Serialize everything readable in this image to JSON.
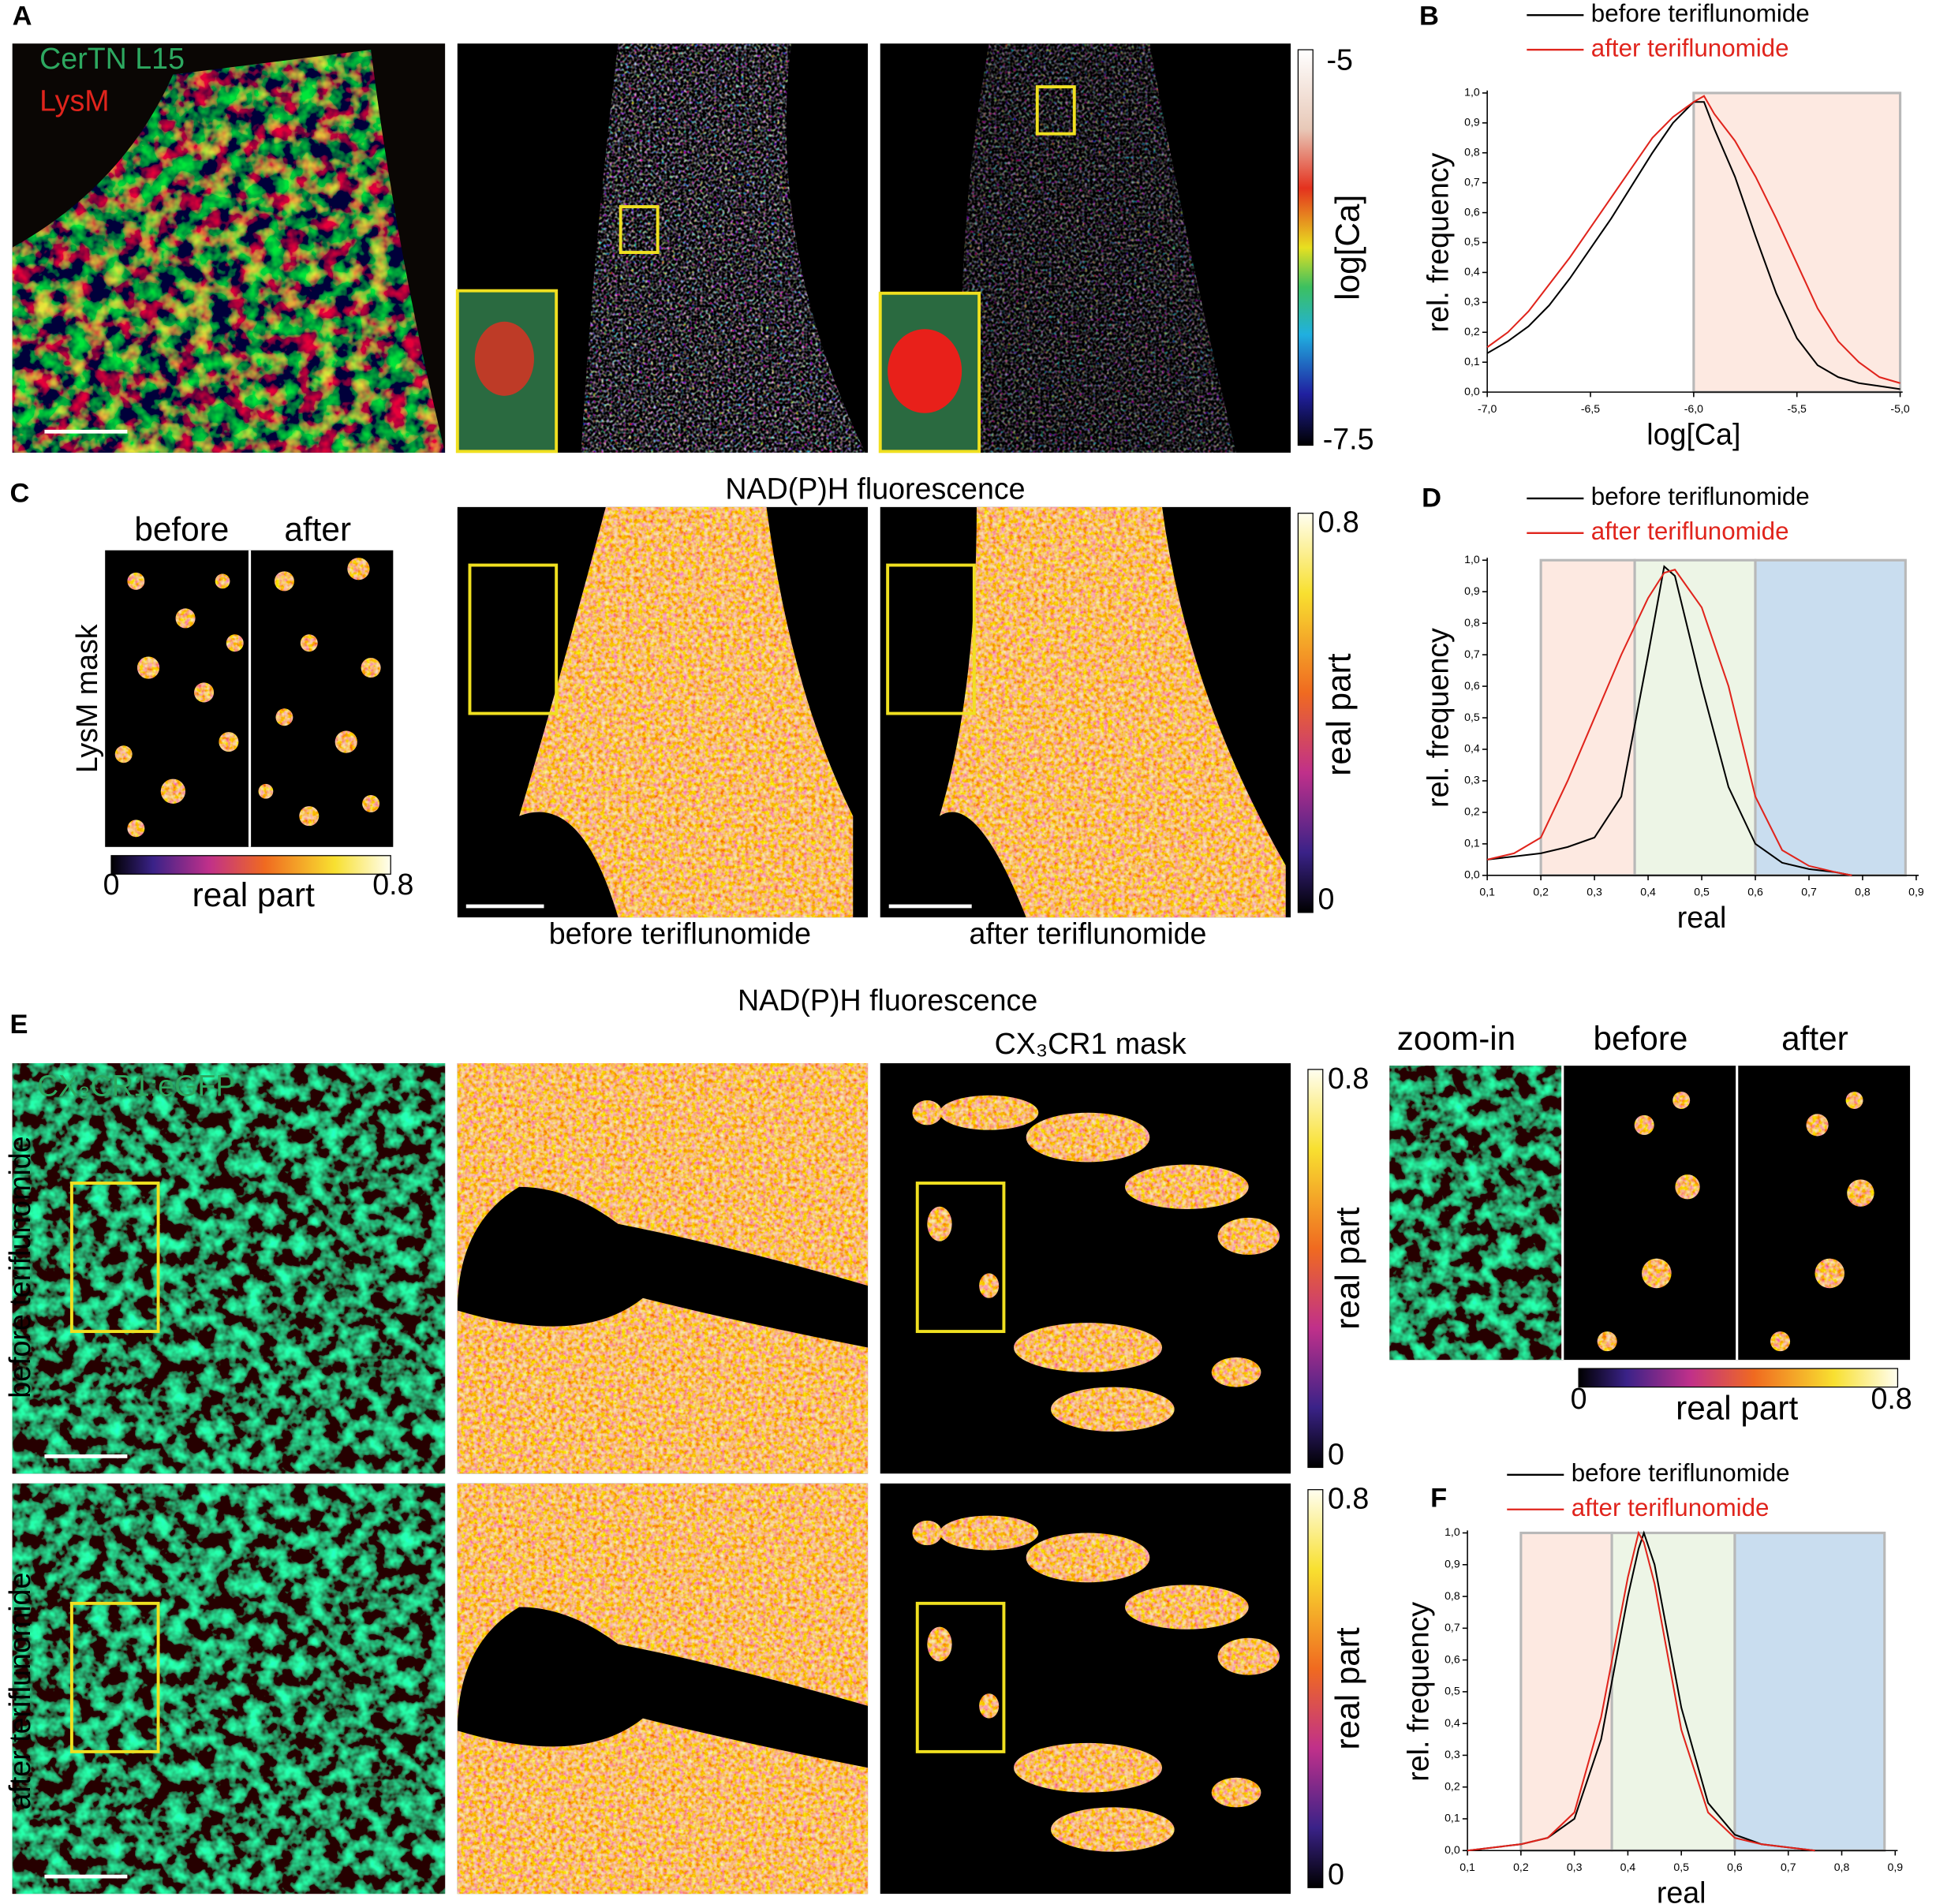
{
  "panel_labels": [
    "A",
    "B",
    "C",
    "D",
    "E",
    "F"
  ],
  "panel_a": {
    "channels": [
      "CerTN L15",
      "LysM"
    ],
    "colorbar": {
      "max": "-5",
      "min": "-7.5",
      "label": "log[Ca]"
    }
  },
  "panel_c": {
    "title": "NAD(P)H fluorescence",
    "mask_columns": [
      "before",
      "after"
    ],
    "mask_label": "LysM mask",
    "mask_colorbar": {
      "min": "0",
      "max": "0.8",
      "label": "real part"
    },
    "image_captions": [
      "before teriflunomide",
      "after teriflunomide"
    ],
    "colorbar": {
      "max": "0.8",
      "min": "0",
      "label": "real part"
    }
  },
  "panel_e": {
    "title": "NAD(P)H fluorescence",
    "channel": "CX₃CR1:eGFP",
    "mask_title": "CX₃CR1 mask",
    "row_labels": [
      "before teriflunomide",
      "after teriflunomide"
    ],
    "colorbars": [
      {
        "max": "0.8",
        "min": "0",
        "label": "real part"
      },
      {
        "max": "0.8",
        "min": "0",
        "label": "real part"
      }
    ],
    "zoom_columns": [
      "zoom-in",
      "before",
      "after"
    ],
    "zoom_colorbar": {
      "min": "0",
      "max": "0.8",
      "label": "real part"
    }
  },
  "chart_data": [
    {
      "type": "line",
      "xlabel": "log[Ca]",
      "ylabel": "rel. frequency",
      "x": [
        -7.0,
        -6.9,
        -6.8,
        -6.7,
        -6.6,
        -6.5,
        -6.4,
        -6.3,
        -6.2,
        -6.1,
        -6.0,
        -5.95,
        -5.9,
        -5.8,
        -5.7,
        -5.6,
        -5.5,
        -5.4,
        -5.3,
        -5.2,
        -5.1,
        -5.0
      ],
      "series": [
        {
          "name": "before teriflunomide",
          "color": "#000000",
          "values": [
            0.13,
            0.17,
            0.22,
            0.29,
            0.38,
            0.48,
            0.58,
            0.69,
            0.8,
            0.9,
            0.97,
            0.97,
            0.88,
            0.72,
            0.52,
            0.33,
            0.18,
            0.09,
            0.05,
            0.03,
            0.02,
            0.01
          ]
        },
        {
          "name": "after teriflunomide",
          "color": "#e0241c",
          "values": [
            0.15,
            0.2,
            0.27,
            0.36,
            0.45,
            0.55,
            0.65,
            0.75,
            0.85,
            0.92,
            0.97,
            0.99,
            0.93,
            0.84,
            0.72,
            0.58,
            0.43,
            0.28,
            0.17,
            0.1,
            0.05,
            0.03
          ]
        }
      ],
      "shaded_regions": [
        {
          "from": -6.0,
          "to": -5.0,
          "color": "#fde9e1"
        }
      ],
      "xlim": [
        -7.0,
        -5.0
      ],
      "xticks": [
        {
          "value": -7.0,
          "label": "-7,0"
        },
        {
          "value": -6.5,
          "label": "-6,5"
        },
        {
          "value": -6.0,
          "label": "-6,0"
        },
        {
          "value": -5.5,
          "label": "-5,5"
        },
        {
          "value": -5.0,
          "label": "-5,0"
        }
      ],
      "ylim": [
        0,
        1.0
      ],
      "yticks": [
        {
          "value": 0,
          "label": "0,0"
        },
        {
          "value": 0.1,
          "label": "0,1"
        },
        {
          "value": 0.2,
          "label": "0,2"
        },
        {
          "value": 0.3,
          "label": "0,3"
        },
        {
          "value": 0.4,
          "label": "0,4"
        },
        {
          "value": 0.5,
          "label": "0,5"
        },
        {
          "value": 0.6,
          "label": "0,6"
        },
        {
          "value": 0.7,
          "label": "0,7"
        },
        {
          "value": 0.8,
          "label": "0,8"
        },
        {
          "value": 0.9,
          "label": "0,9"
        },
        {
          "value": 1.0,
          "label": "1,0"
        }
      ]
    },
    {
      "type": "line",
      "xlabel": "real",
      "ylabel": "rel. frequency",
      "x": [
        0.1,
        0.15,
        0.2,
        0.25,
        0.3,
        0.35,
        0.4,
        0.43,
        0.45,
        0.5,
        0.55,
        0.6,
        0.65,
        0.7,
        0.75,
        0.78
      ],
      "series": [
        {
          "name": "before teriflunomide",
          "color": "#000000",
          "values": [
            0.05,
            0.06,
            0.07,
            0.09,
            0.12,
            0.25,
            0.7,
            0.98,
            0.95,
            0.6,
            0.28,
            0.1,
            0.04,
            0.02,
            0.01,
            0.0
          ]
        },
        {
          "name": "after teriflunomide",
          "color": "#e0241c",
          "values": [
            0.05,
            0.07,
            0.12,
            0.3,
            0.5,
            0.7,
            0.88,
            0.96,
            0.97,
            0.85,
            0.6,
            0.25,
            0.08,
            0.03,
            0.01,
            0.0
          ]
        }
      ],
      "shaded_regions": [
        {
          "from": 0.2,
          "to": 0.375,
          "color": "#fde9e1"
        },
        {
          "from": 0.375,
          "to": 0.6,
          "color": "#edf5e6"
        },
        {
          "from": 0.6,
          "to": 0.88,
          "color": "#c9ddef"
        }
      ],
      "xlim": [
        0.1,
        0.9
      ],
      "xticks": [
        {
          "value": 0.1,
          "label": "0,1"
        },
        {
          "value": 0.2,
          "label": "0,2"
        },
        {
          "value": 0.3,
          "label": "0,3"
        },
        {
          "value": 0.4,
          "label": "0,4"
        },
        {
          "value": 0.5,
          "label": "0,5"
        },
        {
          "value": 0.6,
          "label": "0,6"
        },
        {
          "value": 0.7,
          "label": "0,7"
        },
        {
          "value": 0.8,
          "label": "0,8"
        },
        {
          "value": 0.9,
          "label": "0,9"
        }
      ],
      "ylim": [
        0,
        1.0
      ],
      "yticks": [
        {
          "value": 0,
          "label": "0,0"
        },
        {
          "value": 0.1,
          "label": "0,1"
        },
        {
          "value": 0.2,
          "label": "0,2"
        },
        {
          "value": 0.3,
          "label": "0,3"
        },
        {
          "value": 0.4,
          "label": "0,4"
        },
        {
          "value": 0.5,
          "label": "0,5"
        },
        {
          "value": 0.6,
          "label": "0,6"
        },
        {
          "value": 0.7,
          "label": "0,7"
        },
        {
          "value": 0.8,
          "label": "0,8"
        },
        {
          "value": 0.9,
          "label": "0,9"
        },
        {
          "value": 1.0,
          "label": "1,0"
        }
      ]
    },
    {
      "type": "line",
      "xlabel": "real",
      "ylabel": "rel. frequency",
      "x": [
        0.1,
        0.15,
        0.2,
        0.25,
        0.3,
        0.35,
        0.4,
        0.42,
        0.43,
        0.45,
        0.5,
        0.55,
        0.6,
        0.65,
        0.7,
        0.75
      ],
      "series": [
        {
          "name": "before teriflunomide",
          "color": "#000000",
          "values": [
            0.0,
            0.01,
            0.02,
            0.04,
            0.1,
            0.35,
            0.8,
            0.95,
            1.0,
            0.9,
            0.45,
            0.15,
            0.05,
            0.02,
            0.01,
            0.0
          ]
        },
        {
          "name": "after teriflunomide",
          "color": "#e0241c",
          "values": [
            0.0,
            0.01,
            0.02,
            0.04,
            0.12,
            0.42,
            0.86,
            1.0,
            0.97,
            0.84,
            0.38,
            0.12,
            0.04,
            0.02,
            0.01,
            0.0
          ]
        }
      ],
      "shaded_regions": [
        {
          "from": 0.2,
          "to": 0.37,
          "color": "#fde9e1"
        },
        {
          "from": 0.37,
          "to": 0.6,
          "color": "#edf5e6"
        },
        {
          "from": 0.6,
          "to": 0.88,
          "color": "#c9ddef"
        }
      ],
      "xlim": [
        0.1,
        0.9
      ],
      "xticks": [
        {
          "value": 0.1,
          "label": "0,1"
        },
        {
          "value": 0.2,
          "label": "0,2"
        },
        {
          "value": 0.3,
          "label": "0,3"
        },
        {
          "value": 0.4,
          "label": "0,4"
        },
        {
          "value": 0.5,
          "label": "0,5"
        },
        {
          "value": 0.6,
          "label": "0,6"
        },
        {
          "value": 0.7,
          "label": "0,7"
        },
        {
          "value": 0.8,
          "label": "0,8"
        },
        {
          "value": 0.9,
          "label": "0,9"
        }
      ],
      "ylim": [
        0,
        1.0
      ],
      "yticks": [
        {
          "value": 0,
          "label": "0,0"
        },
        {
          "value": 0.1,
          "label": "0,1"
        },
        {
          "value": 0.2,
          "label": "0,2"
        },
        {
          "value": 0.3,
          "label": "0,3"
        },
        {
          "value": 0.4,
          "label": "0,4"
        },
        {
          "value": 0.5,
          "label": "0,5"
        },
        {
          "value": 0.6,
          "label": "0,6"
        },
        {
          "value": 0.7,
          "label": "0,7"
        },
        {
          "value": 0.8,
          "label": "0,8"
        },
        {
          "value": 0.9,
          "label": "0,9"
        },
        {
          "value": 1.0,
          "label": "1,0"
        }
      ]
    }
  ]
}
